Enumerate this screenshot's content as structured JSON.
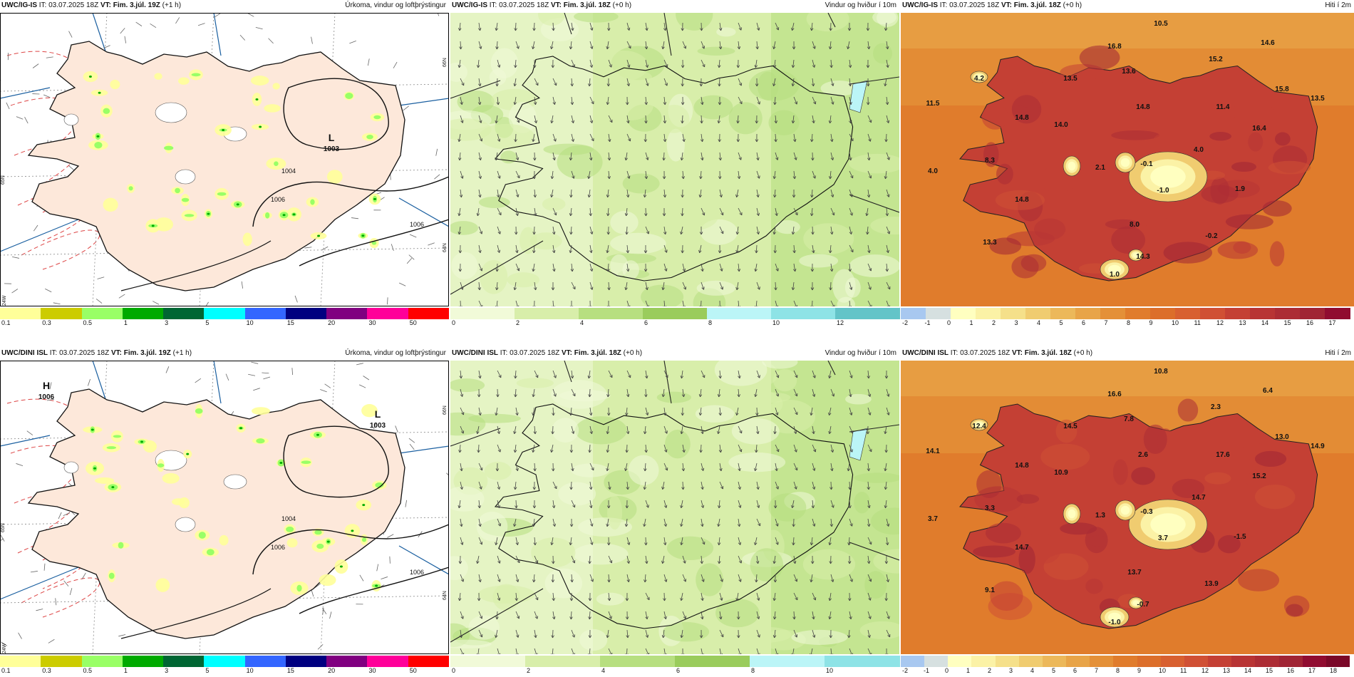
{
  "rows": [
    {
      "panels": [
        {
          "kind": "precip",
          "model": "UWC/IG-IS",
          "it_label": "IT:",
          "it_value": "03.07.2025 18Z",
          "vt_label": "VT:",
          "vt_value": "Fim. 3.júl. 19Z",
          "lead": "(+1 h)",
          "product": "Úrkoma, vindur og loftþrýstingur",
          "pressure_centers": [
            {
              "type": "L",
              "value": "1003"
            }
          ],
          "isobar_labels": [
            "1004",
            "1006",
            "1006"
          ],
          "lat_labels": [
            "66N",
            "65N",
            "64N"
          ],
          "lon_labels": [
            "24W"
          ],
          "colorbar": {
            "colors": [
              "#ffff99",
              "#cccc00",
              "#99ff66",
              "#00aa00",
              "#006633",
              "#00ffff",
              "#3366ff",
              "#000080",
              "#800080",
              "#ff0099",
              "#ff0000"
            ],
            "ticks": [
              "0.1",
              "0.3",
              "0.5",
              "1",
              "3",
              "5",
              "10",
              "15",
              "20",
              "30",
              "50"
            ]
          }
        },
        {
          "kind": "wind",
          "model": "UWC/IG-IS",
          "it_label": "IT:",
          "it_value": "03.07.2025 18Z",
          "vt_label": "VT:",
          "vt_value": "Fim. 3.júl. 18Z",
          "lead": "(+0 h)",
          "product": "Vindur og hviður í 10m",
          "colorbar": {
            "colors": [
              "#f1fad8",
              "#d8eeaa",
              "#b7df80",
              "#9acc5c",
              "#bbf5f7",
              "#8ee3e6",
              "#63c4c8"
            ],
            "ticks": [
              "0",
              "2",
              "4",
              "6",
              "8",
              "10",
              "12"
            ]
          }
        },
        {
          "kind": "temp",
          "model": "UWC/IG-IS",
          "it_label": "IT:",
          "it_value": "03.07.2025 18Z",
          "vt_label": "VT:",
          "vt_value": "Fim. 3.júl. 18Z",
          "lead": "(+0 h)",
          "product": "Hiti í 2m",
          "temp_labels": [
            "10.5",
            "14.6",
            "16.8",
            "15.2",
            "4.2",
            "13.5",
            "13.6",
            "11.5",
            "14.8",
            "14.8",
            "11.4",
            "15.8",
            "13.5",
            "14.0",
            "16.4",
            "4.0",
            "8.3",
            "4.0",
            "2.1",
            "-0.1",
            "-1.0",
            "1.9",
            "14.8",
            "8.0",
            "-0.2",
            "13.3",
            "14.3",
            "1.0"
          ],
          "colorbar": {
            "colors": [
              "#a8c8f0",
              "#d6e0e0",
              "#ffffc0",
              "#fbf2a6",
              "#f5e08a",
              "#f0cc70",
              "#ecb85a",
              "#e8a448",
              "#e49038",
              "#e07c2c",
              "#dc6e2a",
              "#d86030",
              "#d05034",
              "#c44034",
              "#b83434",
              "#ac2c34",
              "#a02434",
              "#900c30"
            ],
            "ticks": [
              "-2",
              "-1",
              "0",
              "1",
              "2",
              "3",
              "4",
              "5",
              "6",
              "7",
              "8",
              "9",
              "10",
              "11",
              "12",
              "13",
              "14",
              "15",
              "16",
              "17"
            ]
          }
        }
      ]
    },
    {
      "panels": [
        {
          "kind": "precip",
          "model": "UWC/DINI ISL",
          "it_label": "IT:",
          "it_value": "03.07.2025 18Z",
          "vt_label": "VT:",
          "vt_value": "Fim. 3.júl. 19Z",
          "lead": "(+1 h)",
          "product": "Úrkoma, vindur og loftþrýstingur",
          "pressure_centers": [
            {
              "type": "H",
              "value": "1006"
            },
            {
              "type": "L",
              "value": "1003"
            }
          ],
          "isobar_labels": [
            "1004",
            "1006",
            "1006"
          ],
          "lat_labels": [
            "66N",
            "65N",
            "64N"
          ],
          "lon_labels": [
            "24W"
          ],
          "colorbar": {
            "colors": [
              "#ffff99",
              "#cccc00",
              "#99ff66",
              "#00aa00",
              "#006633",
              "#00ffff",
              "#3366ff",
              "#000080",
              "#800080",
              "#ff0099",
              "#ff0000"
            ],
            "ticks": [
              "0.1",
              "0.3",
              "0.5",
              "1",
              "3",
              "5",
              "10",
              "15",
              "20",
              "30",
              "50"
            ]
          }
        },
        {
          "kind": "wind",
          "model": "UWC/DINI ISL",
          "it_label": "IT:",
          "it_value": "03.07.2025 18Z",
          "vt_label": "VT:",
          "vt_value": "Fim. 3.júl. 18Z",
          "lead": "(+0 h)",
          "product": "Vindur og hviður í 10m",
          "colorbar": {
            "colors": [
              "#f1fad8",
              "#d8eeaa",
              "#b7df80",
              "#9acc5c",
              "#bbf5f7",
              "#8ee3e6"
            ],
            "ticks": [
              "0",
              "2",
              "4",
              "6",
              "8",
              "10"
            ]
          }
        },
        {
          "kind": "temp",
          "model": "UWC/DINI ISL",
          "it_label": "IT:",
          "it_value": "03.07.2025 18Z",
          "vt_label": "VT:",
          "vt_value": "Fim. 3.júl. 18Z",
          "lead": "(+0 h)",
          "product": "Hiti í 2m",
          "temp_labels": [
            "10.8",
            "6.4",
            "16.6",
            "2.3",
            "12.4",
            "14.5",
            "7.8",
            "14.1",
            "2.6",
            "14.8",
            "17.6",
            "13.0",
            "14.9",
            "10.9",
            "15.2",
            "14.7",
            "3.3",
            "3.7",
            "1.3",
            "-0.3",
            "3.7",
            "-1.5",
            "14.7",
            "13.7",
            "13.9",
            "9.1",
            "-0.7",
            "-1.0"
          ],
          "colorbar": {
            "colors": [
              "#a8c8f0",
              "#d6e0e0",
              "#ffffc0",
              "#fbf2a6",
              "#f5e08a",
              "#f0cc70",
              "#ecb85a",
              "#e8a448",
              "#e49038",
              "#e07c2c",
              "#dc6e2a",
              "#d86030",
              "#d05034",
              "#c44034",
              "#b83434",
              "#ac2c34",
              "#a02434",
              "#900c30",
              "#7a0828"
            ],
            "ticks": [
              "-2",
              "-1",
              "0",
              "1",
              "2",
              "3",
              "4",
              "5",
              "6",
              "7",
              "8",
              "9",
              "10",
              "11",
              "12",
              "13",
              "14",
              "15",
              "16",
              "17",
              "18"
            ]
          }
        }
      ]
    }
  ]
}
